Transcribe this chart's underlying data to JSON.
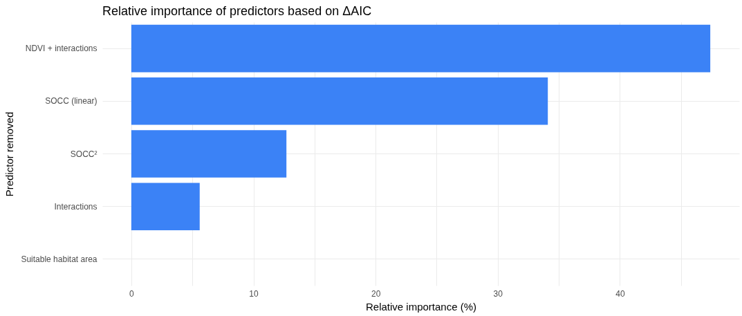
{
  "chart_data": {
    "type": "bar",
    "orientation": "horizontal",
    "title": "Relative importance of predictors based on ΔAIC",
    "xlabel": "Relative importance (%)",
    "ylabel": "Predictor removed",
    "categories": [
      "NDVI + interactions",
      "SOCC (linear)",
      "SOCC²",
      "Interactions",
      "Suitable habitat area"
    ],
    "values": [
      47.4,
      34.1,
      12.7,
      5.6,
      0
    ],
    "color": "#3b82f6",
    "xlim": [
      -2.37,
      49.77
    ],
    "xticks": [
      0,
      {
        "value": 5,
        "label": null
      },
      10,
      {
        "value": 15,
        "label": null
      },
      20,
      {
        "value": 25,
        "label": null
      },
      30,
      {
        "value": 35,
        "label": null
      },
      40,
      {
        "value": 45,
        "label": null
      }
    ],
    "grid": true
  }
}
